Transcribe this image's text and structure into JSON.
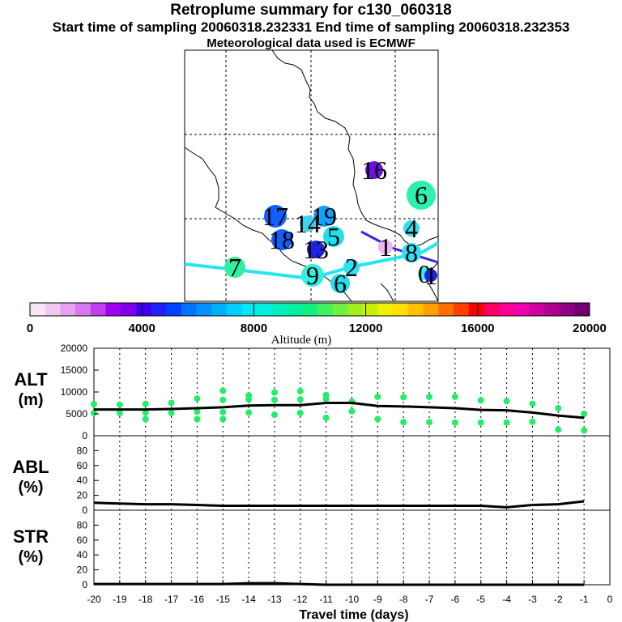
{
  "header": {
    "title": "Retroplume summary for c130_060318",
    "sampling": "Start time of sampling 20060318.232331     End time of sampling 20060318.232353",
    "met": "Meteorological data used is ECMWF"
  },
  "colorbar": {
    "ticks": [
      "0",
      "4000",
      "8000",
      "12000",
      "16000",
      "20000"
    ],
    "label": "Altitude (m)",
    "colors": [
      "#f8e6f8",
      "#f0c8f0",
      "#e8a0f0",
      "#d878f0",
      "#c040f0",
      "#a000f0",
      "#8000e8",
      "#4000f0",
      "#2020f8",
      "#0040ff",
      "#0070ff",
      "#0090ff",
      "#00b0ff",
      "#00d0ff",
      "#00e8f0",
      "#00f0e0",
      "#00f0c0",
      "#00f0a0",
      "#10f080",
      "#40f060",
      "#70f040",
      "#a0f020",
      "#c8f000",
      "#f0f000",
      "#ffe000",
      "#ffc000",
      "#ffa000",
      "#ff7000",
      "#ff4000",
      "#ff0000",
      "#ff0060",
      "#ff0090",
      "#f000b0",
      "#d000a0",
      "#b00090",
      "#900080",
      "#700070"
    ]
  },
  "map": {
    "labels": [
      {
        "t": "16",
        "c": "#7010e0"
      },
      {
        "t": "6",
        "c": "#30f0b0"
      },
      {
        "t": "17",
        "c": "#1060ff"
      },
      {
        "t": "19",
        "c": "#10a0ff"
      },
      {
        "t": "14",
        "c": "#40d0f0"
      },
      {
        "t": "18",
        "c": "#1060ff"
      },
      {
        "t": "13",
        "c": "#2020e0"
      },
      {
        "t": "5",
        "c": "#20e0f0"
      },
      {
        "t": "4",
        "c": "#30e0f0"
      },
      {
        "t": "1",
        "c": "#e8b8f0"
      },
      {
        "t": "8",
        "c": "#30e0f0"
      },
      {
        "t": "7",
        "c": "#30f0a0"
      },
      {
        "t": "9",
        "c": "#30f0e0"
      },
      {
        "t": "6",
        "c": "#20e0f0"
      },
      {
        "t": "2",
        "c": "#30e0f0"
      },
      {
        "t": "0",
        "c": "#30f0e0"
      },
      {
        "t": "1",
        "c": "#2020e0"
      }
    ]
  },
  "panels": {
    "alt_label": [
      "ALT",
      "(m)"
    ],
    "abl_label": [
      "ABL",
      "(%)"
    ],
    "str_label": [
      "STR",
      "(%)"
    ],
    "alt_ticks": [
      "20000",
      "15000",
      "10000",
      "5000",
      "0"
    ],
    "pct_ticks": [
      "80",
      "60",
      "40",
      "20",
      "0"
    ],
    "x_ticks": [
      "-20",
      "-19",
      "-18",
      "-17",
      "-16",
      "-15",
      "-14",
      "-13",
      "-12",
      "-11",
      "-10",
      "-9",
      "-8",
      "-7",
      "-6",
      "-5",
      "-4",
      "-3",
      "-2",
      "-1",
      "0"
    ],
    "x_label": "Travel time (days)"
  },
  "chart_data": {
    "type": "line",
    "title": "Retroplume summary for c130_060318",
    "xlabel": "Travel time (days)",
    "x": [
      -20,
      -19,
      -18,
      -17,
      -16,
      -15,
      -14,
      -13,
      -12,
      -11,
      -10,
      -9,
      -8,
      -7,
      -6,
      -5,
      -4,
      -3,
      -2,
      -1
    ],
    "xlim": [
      -20,
      0
    ],
    "series": [
      {
        "name": "ALT (m)",
        "ylim": [
          0,
          20000
        ],
        "values": [
          6000,
          6000,
          6000,
          6100,
          6300,
          6500,
          6900,
          7000,
          7000,
          7500,
          7500,
          6800,
          6700,
          6500,
          6300,
          5900,
          5800,
          5300,
          4600,
          4100
        ]
      },
      {
        "name": "ABL (%)",
        "ylim": [
          0,
          100
        ],
        "values": [
          10,
          9,
          8,
          8,
          7,
          6,
          6,
          6,
          6,
          6,
          6,
          6,
          6,
          6,
          6,
          6,
          4,
          7,
          8,
          12
        ]
      },
      {
        "name": "STR (%)",
        "ylim": [
          0,
          100
        ],
        "values": [
          1,
          1,
          1,
          1,
          1,
          1,
          2,
          2,
          1,
          0,
          0,
          0,
          0,
          0,
          0,
          0,
          0,
          0,
          0,
          0
        ]
      }
    ],
    "alt_clusters": [
      [
        -20,
        7200
      ],
      [
        -20,
        5200
      ],
      [
        -19,
        7100
      ],
      [
        -19,
        5200
      ],
      [
        -18,
        7300
      ],
      [
        -18,
        5300
      ],
      [
        -18,
        3800
      ],
      [
        -17,
        7500
      ],
      [
        -17,
        5200
      ],
      [
        -16,
        8500
      ],
      [
        -16,
        5500
      ],
      [
        -16,
        3800
      ],
      [
        -15,
        10300
      ],
      [
        -15,
        8200
      ],
      [
        -15,
        5400
      ],
      [
        -15,
        3800
      ],
      [
        -14,
        9200
      ],
      [
        -14,
        8300
      ],
      [
        -14,
        5300
      ],
      [
        -13,
        9900
      ],
      [
        -13,
        8200
      ],
      [
        -13,
        4800
      ],
      [
        -12,
        10200
      ],
      [
        -12,
        8300
      ],
      [
        -12,
        5200
      ],
      [
        -11,
        9300
      ],
      [
        -11,
        8400
      ],
      [
        -11,
        4100
      ],
      [
        -10,
        7800
      ],
      [
        -10,
        5600
      ],
      [
        -9,
        8900
      ],
      [
        -9,
        3800
      ],
      [
        -8,
        8800
      ],
      [
        -8,
        3100
      ],
      [
        -7,
        8900
      ],
      [
        -7,
        3100
      ],
      [
        -6,
        8900
      ],
      [
        -6,
        3000
      ],
      [
        -5,
        8100
      ],
      [
        -5,
        3000
      ],
      [
        -4,
        7900
      ],
      [
        -4,
        3000
      ],
      [
        -3,
        7300
      ],
      [
        -3,
        3200
      ],
      [
        -2,
        6300
      ],
      [
        -2,
        1400
      ],
      [
        -1,
        5000
      ],
      [
        -1,
        1200
      ]
    ]
  }
}
